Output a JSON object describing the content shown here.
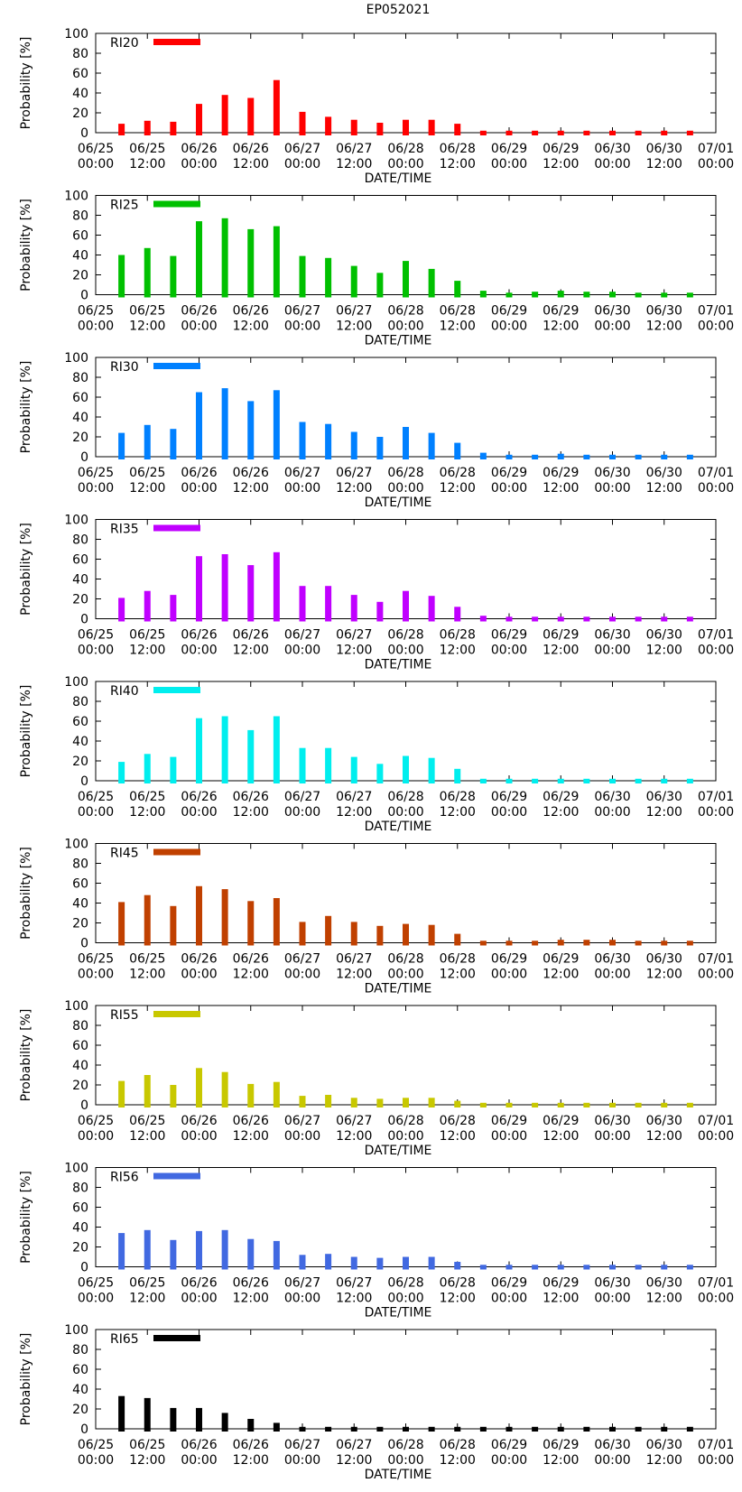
{
  "title": "EP052021",
  "chart_data": {
    "type": "bar",
    "xlabel": "DATE/TIME",
    "ylabel": "Probability [%]",
    "ylim": [
      0,
      100
    ],
    "yticks": [
      0,
      20,
      40,
      60,
      80,
      100
    ],
    "xlim_hours": [
      0,
      144
    ],
    "xtick_labels": [
      [
        "06/25",
        "00:00"
      ],
      [
        "06/25",
        "12:00"
      ],
      [
        "06/26",
        "00:00"
      ],
      [
        "06/26",
        "12:00"
      ],
      [
        "06/27",
        "00:00"
      ],
      [
        "06/27",
        "12:00"
      ],
      [
        "06/28",
        "00:00"
      ],
      [
        "06/28",
        "12:00"
      ],
      [
        "06/29",
        "00:00"
      ],
      [
        "06/29",
        "12:00"
      ],
      [
        "06/30",
        "00:00"
      ],
      [
        "06/30",
        "12:00"
      ],
      [
        "07/01",
        "00:00"
      ]
    ],
    "x_hours": [
      6,
      12,
      18,
      24,
      30,
      36,
      42,
      48,
      54,
      60,
      66,
      72,
      78,
      84,
      90,
      96,
      102,
      108,
      114,
      120,
      126,
      132,
      138
    ],
    "series": [
      {
        "name": "RI20",
        "color": "#ff0000",
        "values": [
          9,
          12,
          11,
          29,
          38,
          35,
          53,
          21,
          16,
          13,
          10,
          13,
          13,
          9,
          2,
          2,
          2,
          2,
          2,
          2,
          2,
          2,
          2
        ]
      },
      {
        "name": "RI25",
        "color": "#00c000",
        "values": [
          40,
          47,
          39,
          74,
          77,
          66,
          69,
          39,
          37,
          29,
          22,
          34,
          26,
          14,
          4,
          2,
          3,
          4,
          3,
          3,
          2,
          2,
          2
        ]
      },
      {
        "name": "RI30",
        "color": "#0080ff",
        "values": [
          24,
          32,
          28,
          65,
          69,
          56,
          67,
          35,
          33,
          25,
          20,
          30,
          24,
          14,
          4,
          2,
          2,
          3,
          2,
          2,
          2,
          2,
          2
        ]
      },
      {
        "name": "RI35",
        "color": "#c000ff",
        "values": [
          21,
          28,
          24,
          63,
          65,
          54,
          67,
          33,
          33,
          24,
          17,
          28,
          23,
          12,
          3,
          2,
          2,
          2,
          2,
          2,
          2,
          2,
          2
        ]
      },
      {
        "name": "RI40",
        "color": "#00eeee",
        "values": [
          19,
          27,
          24,
          63,
          65,
          51,
          65,
          33,
          33,
          24,
          17,
          25,
          23,
          12,
          2,
          2,
          2,
          2,
          2,
          2,
          2,
          2,
          2
        ]
      },
      {
        "name": "RI45",
        "color": "#c04000",
        "values": [
          41,
          48,
          37,
          57,
          54,
          42,
          45,
          21,
          27,
          21,
          17,
          19,
          18,
          9,
          2,
          2,
          2,
          3,
          3,
          3,
          2,
          2,
          2
        ]
      },
      {
        "name": "RI55",
        "color": "#c8c800",
        "values": [
          24,
          30,
          20,
          37,
          33,
          21,
          23,
          9,
          10,
          7,
          6,
          7,
          7,
          4,
          2,
          2,
          2,
          2,
          2,
          2,
          2,
          2,
          2
        ]
      },
      {
        "name": "RI56",
        "color": "#4169e1",
        "values": [
          34,
          37,
          27,
          36,
          37,
          28,
          26,
          12,
          13,
          10,
          9,
          10,
          10,
          5,
          2,
          2,
          2,
          2,
          2,
          2,
          2,
          2,
          2
        ]
      },
      {
        "name": "RI65",
        "color": "#000000",
        "values": [
          33,
          31,
          21,
          21,
          16,
          10,
          6,
          2,
          2,
          2,
          2,
          2,
          2,
          2,
          2,
          2,
          2,
          2,
          2,
          2,
          2,
          2,
          2
        ]
      }
    ]
  }
}
